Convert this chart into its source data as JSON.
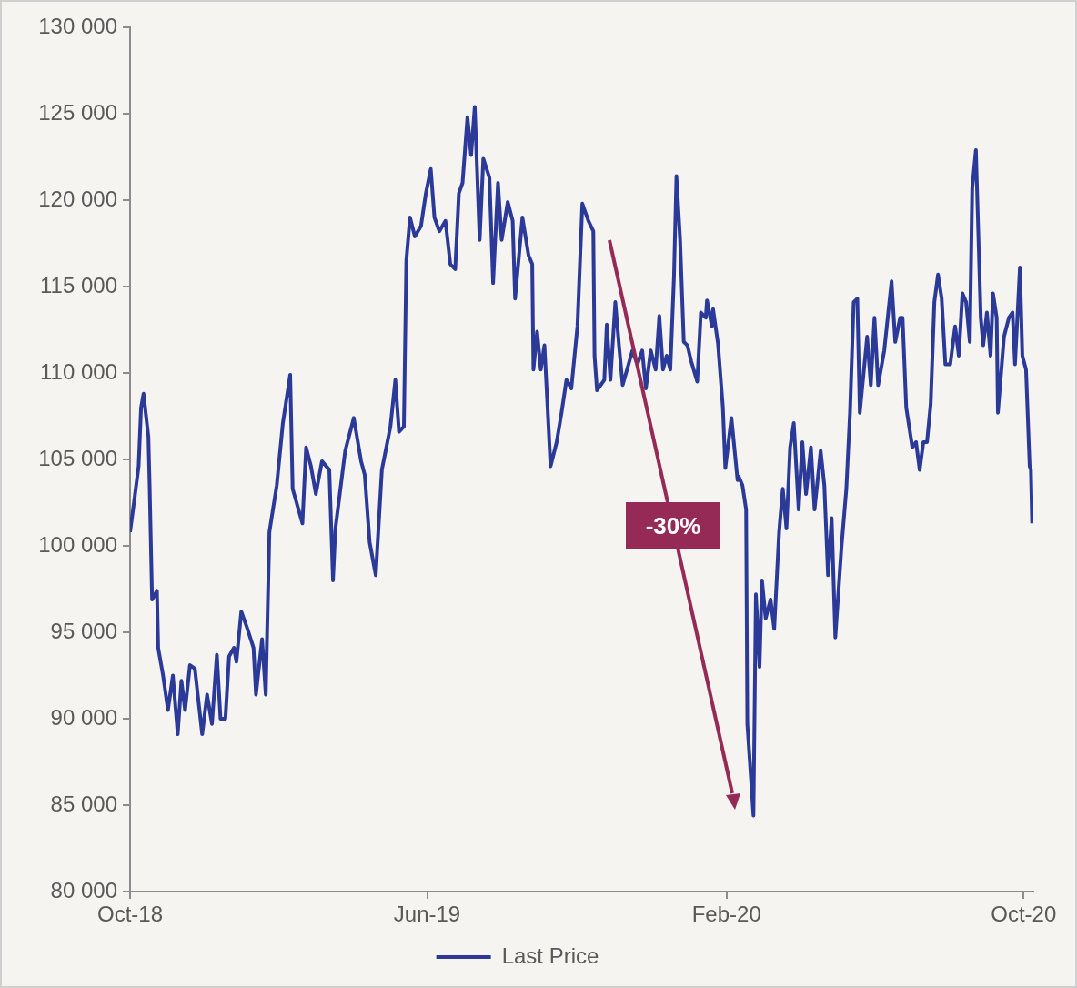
{
  "chart_data": {
    "type": "line",
    "grid": false,
    "legend": "bottom",
    "marker": "none",
    "line_style": "solid",
    "xlim": [
      "2018-10-01",
      "2020-10-09"
    ],
    "xticks": [
      {
        "value": "2018-10-01",
        "label": "Oct-18"
      },
      {
        "value": "2019-06-01",
        "label": "Jun-19"
      },
      {
        "value": "2020-02-01",
        "label": "Feb-20"
      },
      {
        "value": "2020-10-01",
        "label": "Oct-20"
      }
    ],
    "ylim": [
      80000,
      130000
    ],
    "yticks": [
      {
        "value": 80000,
        "label": "80 000"
      },
      {
        "value": 85000,
        "label": "85 000"
      },
      {
        "value": 90000,
        "label": "90 000"
      },
      {
        "value": 95000,
        "label": "95 000"
      },
      {
        "value": 100000,
        "label": "100 000"
      },
      {
        "value": 105000,
        "label": "105 000"
      },
      {
        "value": 110000,
        "label": "110 000"
      },
      {
        "value": 115000,
        "label": "115 000"
      },
      {
        "value": 120000,
        "label": "120 000"
      },
      {
        "value": 125000,
        "label": "125 000"
      },
      {
        "value": 130000,
        "label": "130 000"
      }
    ],
    "annotations": [
      "-30%"
    ],
    "x": [
      "2018-10-01",
      "2018-10-04",
      "2018-10-08",
      "2018-10-10",
      "2018-10-12",
      "2018-10-16",
      "2018-10-17",
      "2018-10-19",
      "2018-10-23",
      "2018-10-24",
      "2018-10-28",
      "2018-11-01",
      "2018-11-05",
      "2018-11-09",
      "2018-11-12",
      "2018-11-15",
      "2018-11-19",
      "2018-11-23",
      "2018-11-29",
      "2018-12-03",
      "2018-12-07",
      "2018-12-11",
      "2018-12-14",
      "2018-12-18",
      "2018-12-21",
      "2018-12-25",
      "2018-12-27",
      "2018-12-31",
      "2019-01-05",
      "2019-01-10",
      "2019-01-12",
      "2019-01-17",
      "2019-01-20",
      "2019-01-23",
      "2019-01-29",
      "2019-02-03",
      "2019-02-09",
      "2019-02-11",
      "2019-02-19",
      "2019-02-22",
      "2019-02-26",
      "2019-03-02",
      "2019-03-07",
      "2019-03-13",
      "2019-03-16",
      "2019-03-18",
      "2019-03-26",
      "2019-04-02",
      "2019-04-08",
      "2019-04-11",
      "2019-04-15",
      "2019-04-20",
      "2019-04-25",
      "2019-05-02",
      "2019-05-06",
      "2019-05-09",
      "2019-05-13",
      "2019-05-15",
      "2019-05-18",
      "2019-05-22",
      "2019-05-27",
      "2019-05-31",
      "2019-06-04",
      "2019-06-07",
      "2019-06-11",
      "2019-06-16",
      "2019-06-20",
      "2019-06-24",
      "2019-06-27",
      "2019-06-30",
      "2019-07-04",
      "2019-07-07",
      "2019-07-10",
      "2019-07-14",
      "2019-07-17",
      "2019-07-22",
      "2019-07-25",
      "2019-07-29",
      "2019-08-01",
      "2019-08-06",
      "2019-08-10",
      "2019-08-12",
      "2019-08-18",
      "2019-08-23",
      "2019-08-26",
      "2019-08-27",
      "2019-08-30",
      "2019-09-02",
      "2019-09-05",
      "2019-09-10",
      "2019-09-15",
      "2019-09-19",
      "2019-09-23",
      "2019-09-27",
      "2019-10-02",
      "2019-10-06",
      "2019-10-11",
      "2019-10-15",
      "2019-10-16",
      "2019-10-18",
      "2019-10-24",
      "2019-10-26",
      "2019-10-29",
      "2019-11-02",
      "2019-11-05",
      "2019-11-08",
      "2019-11-16",
      "2019-11-20",
      "2019-11-24",
      "2019-11-27",
      "2019-12-01",
      "2019-12-05",
      "2019-12-08",
      "2019-12-11",
      "2019-12-14",
      "2019-12-17",
      "2019-12-20",
      "2019-12-22",
      "2019-12-25",
      "2019-12-28",
      "2019-12-31",
      "2020-01-03",
      "2020-01-08",
      "2020-01-11",
      "2020-01-15",
      "2020-01-16",
      "2020-01-20",
      "2020-01-21",
      "2020-01-25",
      "2020-01-29",
      "2020-01-31",
      "2020-02-05",
      "2020-02-10",
      "2020-02-11",
      "2020-02-14",
      "2020-02-17",
      "2020-02-18",
      "2020-02-23",
      "2020-02-25",
      "2020-02-28",
      "2020-03-01",
      "2020-03-04",
      "2020-03-08",
      "2020-03-11",
      "2020-03-15",
      "2020-03-18",
      "2020-03-21",
      "2020-03-24",
      "2020-03-27",
      "2020-03-31",
      "2020-04-03",
      "2020-04-06",
      "2020-04-10",
      "2020-04-13",
      "2020-04-18",
      "2020-04-21",
      "2020-04-24",
      "2020-04-27",
      "2020-04-30",
      "2020-05-05",
      "2020-05-09",
      "2020-05-12",
      "2020-05-15",
      "2020-05-18",
      "2020-05-20",
      "2020-05-26",
      "2020-05-29",
      "2020-06-01",
      "2020-06-04",
      "2020-06-09",
      "2020-06-15",
      "2020-06-18",
      "2020-06-22",
      "2020-06-24",
      "2020-06-27",
      "2020-07-02",
      "2020-07-05",
      "2020-07-08",
      "2020-07-11",
      "2020-07-14",
      "2020-07-17",
      "2020-07-20",
      "2020-07-23",
      "2020-07-26",
      "2020-07-29",
      "2020-08-02",
      "2020-08-06",
      "2020-08-09",
      "2020-08-12",
      "2020-08-15",
      "2020-08-18",
      "2020-08-20",
      "2020-08-23",
      "2020-08-27",
      "2020-08-29",
      "2020-09-01",
      "2020-09-04",
      "2020-09-06",
      "2020-09-09",
      "2020-09-10",
      "2020-09-15",
      "2020-09-19",
      "2020-09-22",
      "2020-09-24",
      "2020-09-28",
      "2020-09-30",
      "2020-10-03",
      "2020-10-06",
      "2020-10-07",
      "2020-10-08"
    ],
    "series": [
      {
        "name": "Last Price",
        "color": "#2b3a98",
        "values": [
          100800,
          102400,
          104600,
          108000,
          108800,
          106300,
          103500,
          96900,
          97400,
          94100,
          92500,
          90500,
          92500,
          89100,
          92200,
          90500,
          93100,
          92900,
          89100,
          91400,
          89700,
          93700,
          90000,
          90000,
          93600,
          94100,
          93300,
          96200,
          95200,
          94100,
          91400,
          94600,
          91400,
          100800,
          103500,
          107100,
          109900,
          103300,
          101300,
          105700,
          104600,
          103000,
          104900,
          104400,
          98000,
          101000,
          105500,
          107400,
          104900,
          104100,
          100200,
          98300,
          104400,
          106900,
          109600,
          106600,
          106900,
          116500,
          119000,
          117900,
          118500,
          120400,
          121800,
          119000,
          118200,
          118800,
          116300,
          116000,
          120400,
          121000,
          124800,
          122600,
          125400,
          117700,
          122400,
          121300,
          115200,
          121000,
          117700,
          119900,
          118800,
          114300,
          119000,
          116800,
          116300,
          110200,
          112400,
          110200,
          111600,
          104600,
          106000,
          107700,
          109600,
          109100,
          112700,
          119800,
          118800,
          118200,
          111000,
          109000,
          109600,
          112800,
          109600,
          114100,
          111600,
          109300,
          111300,
          110500,
          111300,
          109100,
          111300,
          110200,
          113300,
          110200,
          111000,
          110200,
          115600,
          121400,
          117700,
          111800,
          111600,
          110700,
          109500,
          113500,
          113200,
          114200,
          112700,
          113700,
          111700,
          108000,
          104500,
          107400,
          103800,
          104000,
          103500,
          102100,
          89700,
          84400,
          97200,
          93000,
          98000,
          95800,
          96900,
          95200,
          100800,
          103300,
          101000,
          105700,
          107100,
          102100,
          106000,
          103000,
          105700,
          102100,
          105500,
          103500,
          98300,
          101600,
          94700,
          99900,
          103300,
          107700,
          114100,
          114300,
          107700,
          112100,
          109300,
          113200,
          109300,
          111300,
          115300,
          111800,
          113200,
          113200,
          108000,
          105700,
          106000,
          104400,
          106000,
          106000,
          108200,
          114100,
          115700,
          114300,
          110500,
          110500,
          112700,
          111000,
          114600,
          114100,
          111800,
          120700,
          122900,
          113200,
          111600,
          113500,
          111000,
          114600,
          113200,
          107700,
          112100,
          113200,
          113500,
          110500,
          116100,
          111000,
          110200,
          104600,
          104400,
          101300
        ]
      }
    ]
  }
}
